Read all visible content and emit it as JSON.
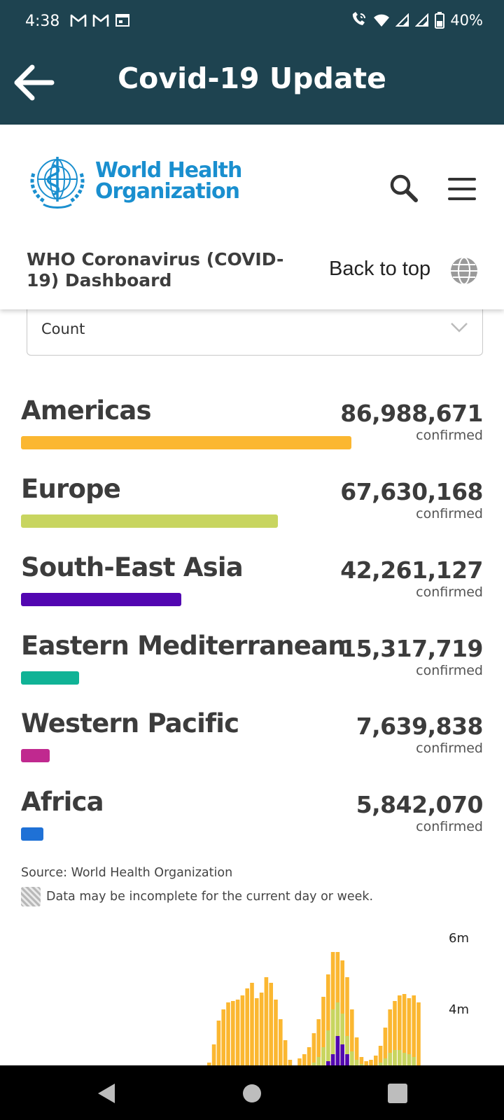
{
  "status_bar": {
    "time": "4:38",
    "battery": "40%",
    "left_icons": [
      "gmail-icon",
      "gmail-icon",
      "calendar-icon"
    ],
    "right_icons": [
      "wifi-calling-icon",
      "wifi-icon",
      "signal-icon",
      "signal-icon",
      "battery-icon"
    ]
  },
  "app_bar": {
    "title": "Covid-19 Update",
    "back_icon": "back-arrow-icon"
  },
  "who": {
    "logo_line1": "World Health",
    "logo_line2": "Organization",
    "dashboard_title": "WHO Coronavirus (COVID-19) Dashboard",
    "back_to_top": "Back to top"
  },
  "select": {
    "value": "Count"
  },
  "regions": [
    {
      "name": "Americas",
      "value": "86,988,671",
      "label": "confirmed",
      "count": 86988671,
      "color": "#fbb731"
    },
    {
      "name": "Europe",
      "value": "67,630,168",
      "label": "confirmed",
      "count": 67630168,
      "color": "#c8d560"
    },
    {
      "name": "South-East Asia",
      "value": "42,261,127",
      "label": "confirmed",
      "count": 42261127,
      "color": "#5206b1"
    },
    {
      "name": "Eastern Mediterranean",
      "value": "15,317,719",
      "label": "confirmed",
      "count": 15317719,
      "color": "#10b396"
    },
    {
      "name": "Western Pacific",
      "value": "7,639,838",
      "label": "confirmed",
      "count": 7639838,
      "color": "#c0298f"
    },
    {
      "name": "Africa",
      "value": "5,842,070",
      "label": "confirmed",
      "count": 5842070,
      "color": "#1f71d6"
    }
  ],
  "source": "Source:  World Health Organization",
  "note": "Data may be incomplete for the current day or week.",
  "chart": {
    "yticks": [
      "6m",
      "4m"
    ],
    "colors": {
      "americas": "#fbb731",
      "europe": "#c8d560",
      "sea": "#5206b1"
    }
  }
}
